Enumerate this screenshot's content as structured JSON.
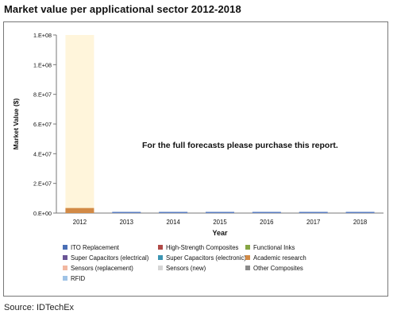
{
  "title": "Market value per applicational sector 2012-2018",
  "overlay_text": "For the full forecasts please purchase this report.",
  "source": "Source: IDTechEx",
  "chart_data": {
    "type": "bar",
    "stacked": true,
    "categories": [
      "2012",
      "2013",
      "2014",
      "2015",
      "2016",
      "2017",
      "2018"
    ],
    "xlabel": "Year",
    "ylabel": "Market Value ($)",
    "ylim": [
      0,
      120000000
    ],
    "ytick_values": [
      0,
      20000000,
      40000000,
      60000000,
      80000000,
      100000000,
      120000000
    ],
    "ytick_labels": [
      "0.E+00",
      "2.E+07",
      "4.E+07",
      "6.E+07",
      "8.E+07",
      "1.E+08",
      "1.E+08"
    ],
    "grid": false,
    "legend_position": "bottom",
    "series": [
      {
        "name": "ITO Replacement",
        "color": "#4a6fb5",
        "values": [
          0,
          0,
          0,
          0,
          0,
          0,
          0
        ]
      },
      {
        "name": "High-Strength Composites",
        "color": "#b04a47",
        "values": [
          0,
          0,
          0,
          0,
          0,
          0,
          0
        ]
      },
      {
        "name": "Functional Inks",
        "color": "#86a544",
        "values": [
          0,
          0,
          0,
          0,
          0,
          0,
          0
        ]
      },
      {
        "name": "Super Capacitors (electrical)",
        "color": "#6b5596",
        "values": [
          0,
          0,
          0,
          0,
          0,
          0,
          0
        ]
      },
      {
        "name": "Super Capacitors (electronic)",
        "color": "#3c95b2",
        "values": [
          0,
          0,
          0,
          0,
          0,
          0,
          0
        ]
      },
      {
        "name": "Academic research",
        "color": "#d28a46",
        "values": [
          3400000,
          0,
          0,
          0,
          0,
          0,
          0
        ]
      },
      {
        "name": "Sensors (replacement)",
        "color": "#f2b7a0",
        "values": [
          0,
          0,
          0,
          0,
          0,
          0,
          0
        ]
      },
      {
        "name": "Sensors (new)",
        "color": "#d5d5d5",
        "values": [
          0,
          0,
          0,
          0,
          0,
          0,
          0
        ]
      },
      {
        "name": "Other Composites",
        "color": "#8a8a8a",
        "values": [
          0,
          0,
          0,
          0,
          0,
          0,
          0
        ]
      },
      {
        "name": "RFID",
        "color": "#9fc3e6",
        "values": [
          0,
          0,
          0,
          0,
          0,
          0,
          0
        ]
      }
    ],
    "baseline_bar_values": [
      0,
      800000,
      800000,
      800000,
      800000,
      800000,
      800000
    ],
    "baseline_bar_color": "#5b7ec2",
    "highlight_column_color": "#fff5db"
  }
}
